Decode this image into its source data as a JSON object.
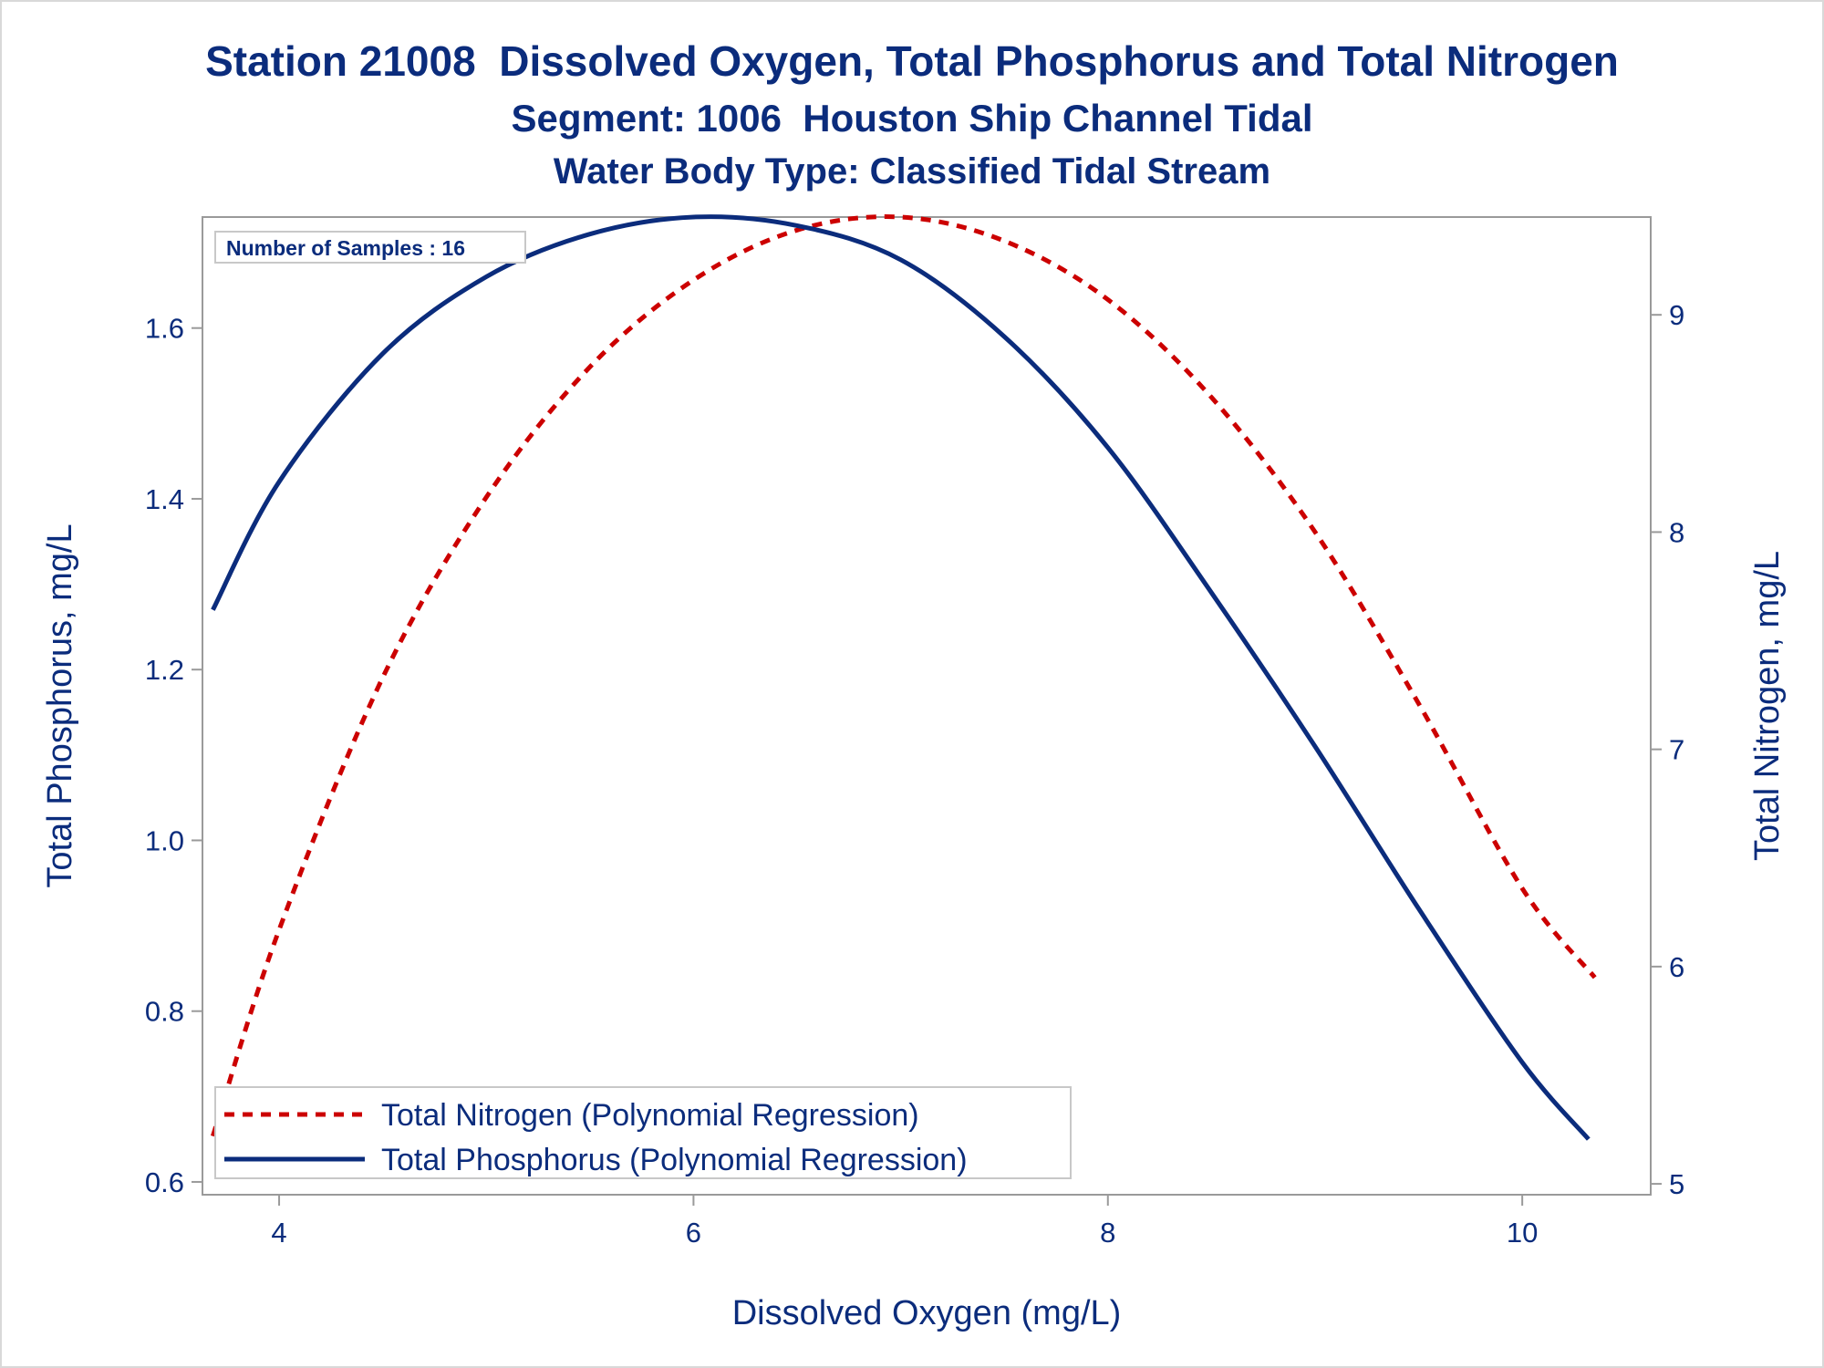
{
  "chart_data": {
    "type": "line",
    "title": "Station 21008  Dissolved Oxygen, Total Phosphorus and Total Nitrogen",
    "subtitle": "Segment: 1006  Houston Ship Channel Tidal",
    "subtitle2": "Water Body Type: Classified Tidal Stream",
    "xlabel": "Dissolved Oxygen (mg/L)",
    "ylabel": "Total Phosphorus, mg/L",
    "y2label": "Total Nitrogen, mg/L",
    "xlim": [
      3.63,
      10.62
    ],
    "ylim": [
      0.585,
      1.73
    ],
    "y2lim": [
      4.95,
      9.45
    ],
    "x_ticks": [
      4,
      6,
      8,
      10
    ],
    "y_ticks": [
      0.6,
      0.8,
      1.0,
      1.2,
      1.4,
      1.6
    ],
    "y2_ticks": [
      5,
      6,
      7,
      8,
      9
    ],
    "x_tick_labels": [
      "4",
      "6",
      "8",
      "10"
    ],
    "y_tick_labels": [
      "0.6",
      "0.8",
      "1.0",
      "1.2",
      "1.4",
      "1.6"
    ],
    "y2_tick_labels": [
      "5",
      "6",
      "7",
      "8",
      "9"
    ],
    "grid": false,
    "legend_position": "bottom-left",
    "inset_text": "Number of Samples : 16",
    "series": [
      {
        "name": "Total Nitrogen (Polynomial Regression)",
        "axis": "right",
        "color": "#cc0000",
        "dash": "dashed",
        "x": [
          3.68,
          4.0,
          4.5,
          5.0,
          5.5,
          6.0,
          6.5,
          7.0,
          7.5,
          8.0,
          8.5,
          9.0,
          9.5,
          10.0,
          10.35
        ],
        "values": [
          5.22,
          6.17,
          7.33,
          8.16,
          8.76,
          9.16,
          9.39,
          9.45,
          9.34,
          9.07,
          8.62,
          8.0,
          7.21,
          6.36,
          5.95
        ]
      },
      {
        "name": "Total Phosphorus (Polynomial Regression)",
        "axis": "left",
        "color": "#0b2c7c",
        "dash": "solid",
        "x": [
          3.68,
          4.0,
          4.5,
          5.0,
          5.5,
          6.0,
          6.5,
          7.0,
          7.5,
          8.0,
          8.5,
          9.0,
          9.5,
          10.0,
          10.32
        ],
        "values": [
          1.27,
          1.42,
          1.57,
          1.66,
          1.71,
          1.73,
          1.72,
          1.68,
          1.59,
          1.46,
          1.29,
          1.11,
          0.92,
          0.74,
          0.65
        ]
      }
    ]
  }
}
